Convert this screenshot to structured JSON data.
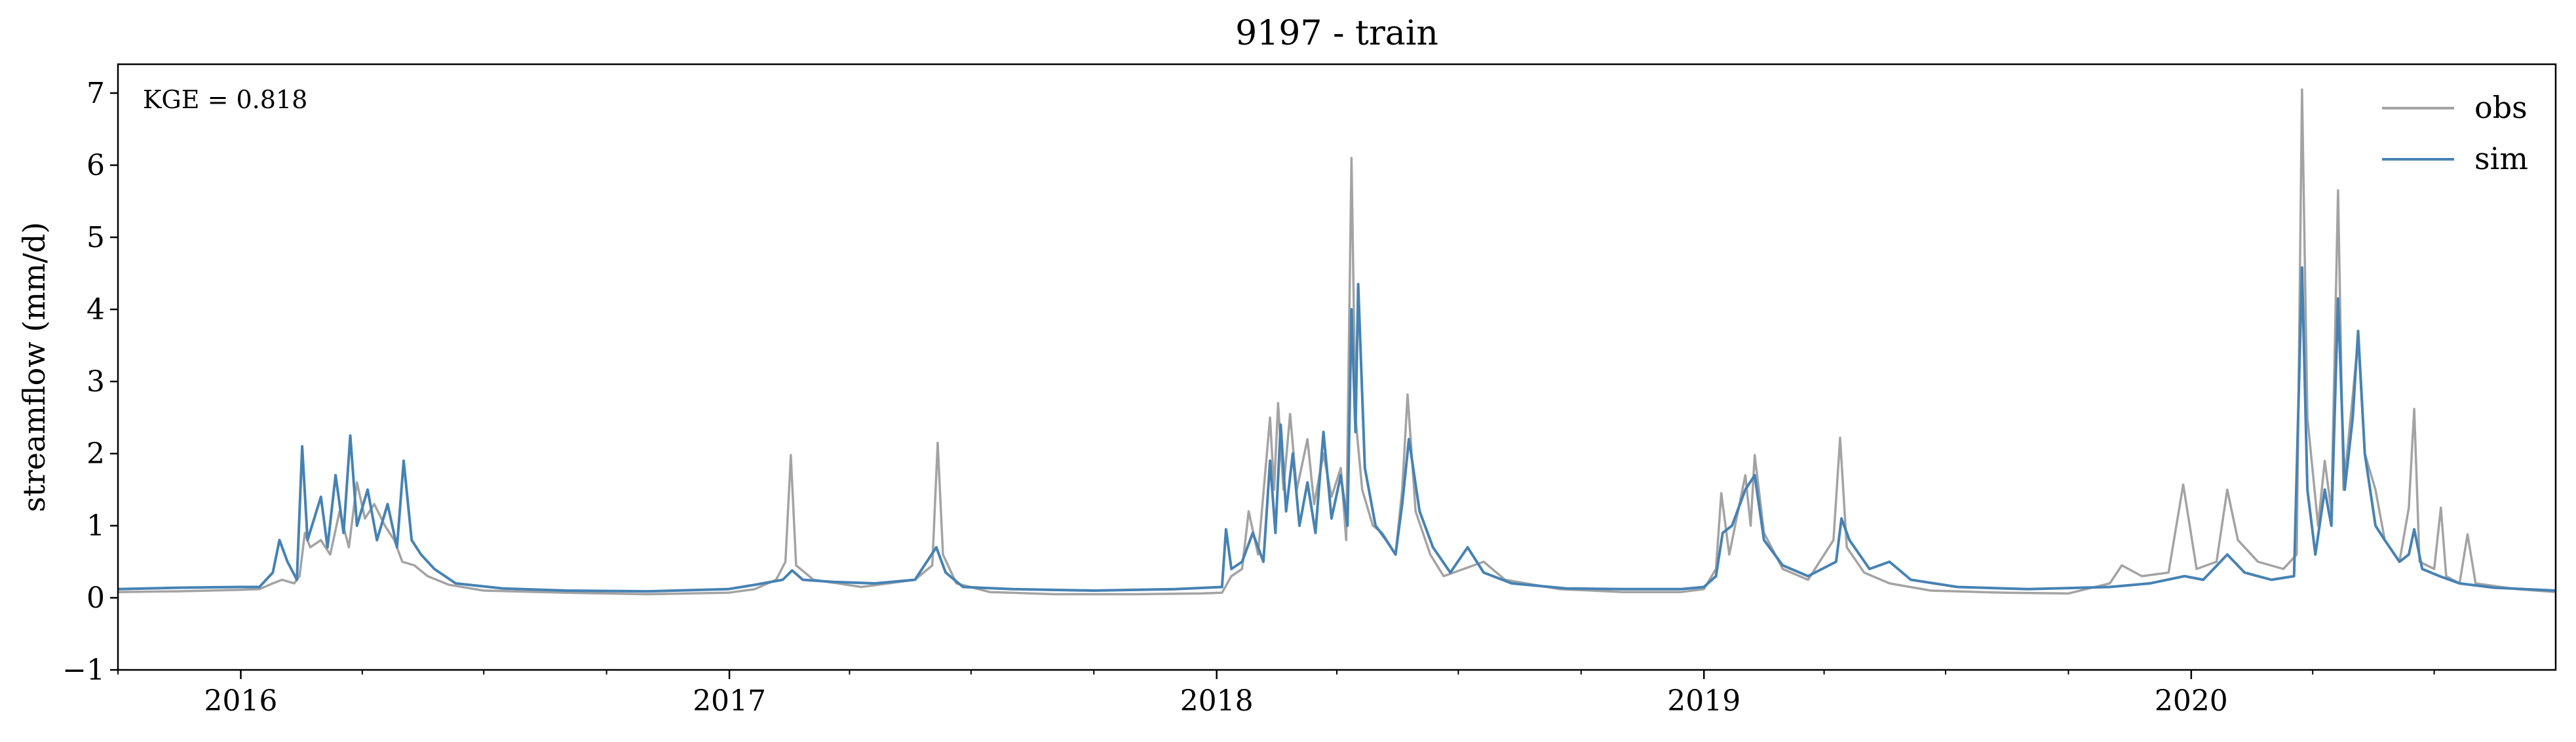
{
  "chart_data": {
    "type": "line",
    "title": "9197 - train",
    "xlabel": "",
    "ylabel": "streamflow (mm/d)",
    "annotation": "KGE = 0.818",
    "xlim": [
      "2015-10-01",
      "2020-09-30"
    ],
    "ylim": [
      -1,
      7.4
    ],
    "x_ticks": [
      "2016-01-01",
      "2017-01-01",
      "2018-01-01",
      "2019-01-01",
      "2020-01-01"
    ],
    "x_tick_labels": [
      "2016",
      "2017",
      "2018",
      "2019",
      "2020"
    ],
    "y_ticks": [
      -1,
      0,
      1,
      2,
      3,
      4,
      5,
      6,
      7
    ],
    "y_tick_labels": [
      "−1",
      "0",
      "1",
      "2",
      "3",
      "4",
      "5",
      "6",
      "7"
    ],
    "grid": false,
    "legend_position": "top-right",
    "series": [
      {
        "name": "obs",
        "color": "#a3a3a3",
        "points": [
          [
            "2015-10-01",
            0.08
          ],
          [
            "2015-11-15",
            0.09
          ],
          [
            "2015-12-31",
            0.11
          ],
          [
            "2016-01-15",
            0.12
          ],
          [
            "2016-01-25",
            0.2
          ],
          [
            "2016-02-01",
            0.25
          ],
          [
            "2016-02-10",
            0.2
          ],
          [
            "2016-02-14",
            0.3
          ],
          [
            "2016-02-18",
            0.9
          ],
          [
            "2016-02-22",
            0.7
          ],
          [
            "2016-03-01",
            0.8
          ],
          [
            "2016-03-08",
            0.6
          ],
          [
            "2016-03-15",
            1.2
          ],
          [
            "2016-03-22",
            0.7
          ],
          [
            "2016-03-28",
            1.6
          ],
          [
            "2016-04-03",
            1.1
          ],
          [
            "2016-04-10",
            1.3
          ],
          [
            "2016-04-18",
            1.0
          ],
          [
            "2016-04-25",
            0.8
          ],
          [
            "2016-05-01",
            0.5
          ],
          [
            "2016-05-10",
            0.45
          ],
          [
            "2016-05-20",
            0.3
          ],
          [
            "2016-06-05",
            0.18
          ],
          [
            "2016-07-01",
            0.1
          ],
          [
            "2016-09-01",
            0.07
          ],
          [
            "2016-11-01",
            0.05
          ],
          [
            "2016-12-31",
            0.07
          ],
          [
            "2017-01-20",
            0.12
          ],
          [
            "2017-02-05",
            0.25
          ],
          [
            "2017-02-12",
            0.5
          ],
          [
            "2017-02-16",
            1.98
          ],
          [
            "2017-02-20",
            0.45
          ],
          [
            "2017-03-05",
            0.25
          ],
          [
            "2017-04-10",
            0.15
          ],
          [
            "2017-05-20",
            0.25
          ],
          [
            "2017-06-02",
            0.45
          ],
          [
            "2017-06-06",
            2.15
          ],
          [
            "2017-06-10",
            0.6
          ],
          [
            "2017-06-20",
            0.2
          ],
          [
            "2017-07-15",
            0.08
          ],
          [
            "2017-09-01",
            0.05
          ],
          [
            "2017-11-01",
            0.05
          ],
          [
            "2017-12-20",
            0.06
          ],
          [
            "2018-01-05",
            0.07
          ],
          [
            "2018-01-12",
            0.3
          ],
          [
            "2018-01-20",
            0.4
          ],
          [
            "2018-01-25",
            1.2
          ],
          [
            "2018-02-01",
            0.6
          ],
          [
            "2018-02-10",
            2.5
          ],
          [
            "2018-02-13",
            1.5
          ],
          [
            "2018-02-16",
            2.7
          ],
          [
            "2018-02-20",
            1.5
          ],
          [
            "2018-02-25",
            2.55
          ],
          [
            "2018-03-02",
            1.5
          ],
          [
            "2018-03-10",
            2.2
          ],
          [
            "2018-03-15",
            1.3
          ],
          [
            "2018-03-22",
            2.0
          ],
          [
            "2018-03-28",
            1.4
          ],
          [
            "2018-04-04",
            1.8
          ],
          [
            "2018-04-08",
            0.8
          ],
          [
            "2018-04-12",
            6.1
          ],
          [
            "2018-04-15",
            2.5
          ],
          [
            "2018-04-20",
            1.5
          ],
          [
            "2018-04-28",
            1.0
          ],
          [
            "2018-05-05",
            0.9
          ],
          [
            "2018-05-15",
            0.6
          ],
          [
            "2018-05-20",
            1.5
          ],
          [
            "2018-05-24",
            2.82
          ],
          [
            "2018-05-30",
            1.2
          ],
          [
            "2018-06-10",
            0.6
          ],
          [
            "2018-06-20",
            0.3
          ],
          [
            "2018-07-05",
            0.4
          ],
          [
            "2018-07-20",
            0.5
          ],
          [
            "2018-08-05",
            0.25
          ],
          [
            "2018-09-15",
            0.12
          ],
          [
            "2018-11-01",
            0.08
          ],
          [
            "2018-12-15",
            0.08
          ],
          [
            "2019-01-01",
            0.12
          ],
          [
            "2019-01-10",
            0.4
          ],
          [
            "2019-01-14",
            1.45
          ],
          [
            "2019-01-20",
            0.6
          ],
          [
            "2019-02-01",
            1.7
          ],
          [
            "2019-02-05",
            1.0
          ],
          [
            "2019-02-08",
            1.98
          ],
          [
            "2019-02-15",
            0.9
          ],
          [
            "2019-03-01",
            0.4
          ],
          [
            "2019-03-20",
            0.25
          ],
          [
            "2019-04-08",
            0.8
          ],
          [
            "2019-04-13",
            2.22
          ],
          [
            "2019-04-18",
            0.7
          ],
          [
            "2019-05-01",
            0.35
          ],
          [
            "2019-05-20",
            0.2
          ],
          [
            "2019-06-20",
            0.1
          ],
          [
            "2019-08-15",
            0.07
          ],
          [
            "2019-10-01",
            0.06
          ],
          [
            "2019-11-01",
            0.2
          ],
          [
            "2019-11-10",
            0.45
          ],
          [
            "2019-11-25",
            0.3
          ],
          [
            "2019-12-15",
            0.35
          ],
          [
            "2019-12-26",
            1.57
          ],
          [
            "2020-01-05",
            0.4
          ],
          [
            "2020-01-20",
            0.5
          ],
          [
            "2020-01-28",
            1.5
          ],
          [
            "2020-02-05",
            0.8
          ],
          [
            "2020-02-20",
            0.5
          ],
          [
            "2020-03-10",
            0.4
          ],
          [
            "2020-03-20",
            0.6
          ],
          [
            "2020-03-24",
            7.05
          ],
          [
            "2020-03-28",
            2.5
          ],
          [
            "2020-04-05",
            1.0
          ],
          [
            "2020-04-10",
            1.9
          ],
          [
            "2020-04-15",
            1.2
          ],
          [
            "2020-04-20",
            5.65
          ],
          [
            "2020-04-24",
            1.5
          ],
          [
            "2020-05-01",
            2.8
          ],
          [
            "2020-05-05",
            3.6
          ],
          [
            "2020-05-10",
            2.0
          ],
          [
            "2020-05-18",
            1.5
          ],
          [
            "2020-05-25",
            0.8
          ],
          [
            "2020-06-05",
            0.5
          ],
          [
            "2020-06-12",
            1.25
          ],
          [
            "2020-06-16",
            2.62
          ],
          [
            "2020-06-20",
            0.5
          ],
          [
            "2020-07-01",
            0.4
          ],
          [
            "2020-07-06",
            1.25
          ],
          [
            "2020-07-10",
            0.3
          ],
          [
            "2020-07-20",
            0.2
          ],
          [
            "2020-07-26",
            0.88
          ],
          [
            "2020-08-01",
            0.2
          ],
          [
            "2020-09-01",
            0.12
          ],
          [
            "2020-09-30",
            0.08
          ]
        ]
      },
      {
        "name": "sim",
        "color": "#4682b4",
        "points": [
          [
            "2015-10-01",
            0.12
          ],
          [
            "2015-11-15",
            0.14
          ],
          [
            "2015-12-31",
            0.15
          ],
          [
            "2016-01-15",
            0.15
          ],
          [
            "2016-01-25",
            0.35
          ],
          [
            "2016-01-30",
            0.8
          ],
          [
            "2016-02-05",
            0.5
          ],
          [
            "2016-02-12",
            0.25
          ],
          [
            "2016-02-16",
            2.1
          ],
          [
            "2016-02-20",
            0.8
          ],
          [
            "2016-03-01",
            1.4
          ],
          [
            "2016-03-06",
            0.7
          ],
          [
            "2016-03-12",
            1.7
          ],
          [
            "2016-03-18",
            0.9
          ],
          [
            "2016-03-23",
            2.25
          ],
          [
            "2016-03-28",
            1.0
          ],
          [
            "2016-04-05",
            1.5
          ],
          [
            "2016-04-12",
            0.8
          ],
          [
            "2016-04-20",
            1.3
          ],
          [
            "2016-04-27",
            0.7
          ],
          [
            "2016-05-02",
            1.9
          ],
          [
            "2016-05-08",
            0.8
          ],
          [
            "2016-05-15",
            0.6
          ],
          [
            "2016-05-25",
            0.4
          ],
          [
            "2016-06-10",
            0.2
          ],
          [
            "2016-07-15",
            0.13
          ],
          [
            "2016-09-01",
            0.1
          ],
          [
            "2016-11-01",
            0.09
          ],
          [
            "2016-12-31",
            0.12
          ],
          [
            "2017-01-20",
            0.18
          ],
          [
            "2017-02-10",
            0.25
          ],
          [
            "2017-02-17",
            0.38
          ],
          [
            "2017-02-25",
            0.25
          ],
          [
            "2017-03-20",
            0.22
          ],
          [
            "2017-04-20",
            0.2
          ],
          [
            "2017-05-20",
            0.25
          ],
          [
            "2017-06-05",
            0.7
          ],
          [
            "2017-06-12",
            0.35
          ],
          [
            "2017-06-25",
            0.15
          ],
          [
            "2017-08-01",
            0.12
          ],
          [
            "2017-10-01",
            0.1
          ],
          [
            "2017-12-01",
            0.12
          ],
          [
            "2018-01-05",
            0.15
          ],
          [
            "2018-01-08",
            0.95
          ],
          [
            "2018-01-12",
            0.4
          ],
          [
            "2018-01-20",
            0.5
          ],
          [
            "2018-01-28",
            0.9
          ],
          [
            "2018-02-05",
            0.5
          ],
          [
            "2018-02-10",
            1.9
          ],
          [
            "2018-02-14",
            0.9
          ],
          [
            "2018-02-18",
            2.4
          ],
          [
            "2018-02-22",
            1.2
          ],
          [
            "2018-02-27",
            2.0
          ],
          [
            "2018-03-04",
            1.0
          ],
          [
            "2018-03-10",
            1.6
          ],
          [
            "2018-03-16",
            0.9
          ],
          [
            "2018-03-22",
            2.3
          ],
          [
            "2018-03-28",
            1.1
          ],
          [
            "2018-04-04",
            1.7
          ],
          [
            "2018-04-09",
            1.0
          ],
          [
            "2018-04-12",
            4.0
          ],
          [
            "2018-04-15",
            2.3
          ],
          [
            "2018-04-17",
            4.35
          ],
          [
            "2018-04-22",
            1.8
          ],
          [
            "2018-04-30",
            1.0
          ],
          [
            "2018-05-08",
            0.8
          ],
          [
            "2018-05-15",
            0.6
          ],
          [
            "2018-05-20",
            1.3
          ],
          [
            "2018-05-25",
            2.2
          ],
          [
            "2018-06-02",
            1.2
          ],
          [
            "2018-06-12",
            0.7
          ],
          [
            "2018-06-25",
            0.35
          ],
          [
            "2018-07-08",
            0.7
          ],
          [
            "2018-07-20",
            0.35
          ],
          [
            "2018-08-10",
            0.2
          ],
          [
            "2018-09-20",
            0.13
          ],
          [
            "2018-11-01",
            0.12
          ],
          [
            "2018-12-15",
            0.12
          ],
          [
            "2019-01-01",
            0.15
          ],
          [
            "2019-01-10",
            0.3
          ],
          [
            "2019-01-15",
            0.9
          ],
          [
            "2019-01-22",
            1.0
          ],
          [
            "2019-02-01",
            1.5
          ],
          [
            "2019-02-08",
            1.7
          ],
          [
            "2019-02-15",
            0.8
          ],
          [
            "2019-03-01",
            0.45
          ],
          [
            "2019-03-20",
            0.3
          ],
          [
            "2019-04-10",
            0.5
          ],
          [
            "2019-04-14",
            1.1
          ],
          [
            "2019-04-20",
            0.8
          ],
          [
            "2019-05-05",
            0.4
          ],
          [
            "2019-05-20",
            0.5
          ],
          [
            "2019-06-05",
            0.25
          ],
          [
            "2019-07-10",
            0.15
          ],
          [
            "2019-09-01",
            0.12
          ],
          [
            "2019-11-01",
            0.15
          ],
          [
            "2019-12-01",
            0.2
          ],
          [
            "2019-12-27",
            0.3
          ],
          [
            "2020-01-10",
            0.25
          ],
          [
            "2020-01-28",
            0.6
          ],
          [
            "2020-02-10",
            0.35
          ],
          [
            "2020-03-01",
            0.25
          ],
          [
            "2020-03-18",
            0.3
          ],
          [
            "2020-03-24",
            4.58
          ],
          [
            "2020-03-28",
            1.5
          ],
          [
            "2020-04-03",
            0.6
          ],
          [
            "2020-04-10",
            1.5
          ],
          [
            "2020-04-15",
            1.0
          ],
          [
            "2020-04-20",
            4.15
          ],
          [
            "2020-04-25",
            1.5
          ],
          [
            "2020-05-01",
            2.5
          ],
          [
            "2020-05-05",
            3.7
          ],
          [
            "2020-05-10",
            2.0
          ],
          [
            "2020-05-18",
            1.0
          ],
          [
            "2020-05-25",
            0.8
          ],
          [
            "2020-06-05",
            0.5
          ],
          [
            "2020-06-12",
            0.6
          ],
          [
            "2020-06-16",
            0.95
          ],
          [
            "2020-06-22",
            0.4
          ],
          [
            "2020-07-05",
            0.3
          ],
          [
            "2020-07-20",
            0.2
          ],
          [
            "2020-08-15",
            0.14
          ],
          [
            "2020-09-30",
            0.1
          ]
        ]
      }
    ]
  }
}
